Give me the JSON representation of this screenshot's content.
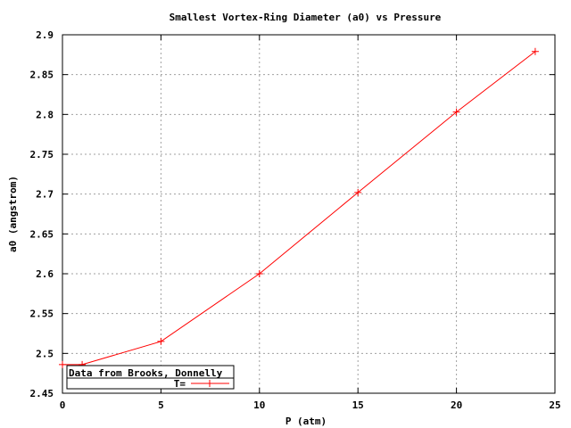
{
  "chart_data": {
    "type": "line",
    "title": "Smallest Vortex-Ring Diameter (a0) vs Pressure",
    "xlabel": "P (atm)",
    "ylabel": "a0 (angstrom)",
    "xlim": [
      0,
      25
    ],
    "ylim": [
      2.45,
      2.9
    ],
    "x_ticks": [
      0,
      5,
      10,
      15,
      20,
      25
    ],
    "y_ticks": [
      2.45,
      2.5,
      2.55,
      2.6,
      2.65,
      2.7,
      2.75,
      2.8,
      2.85,
      2.9
    ],
    "x_tick_labels": [
      "0",
      "5",
      "10",
      "15",
      "20",
      "25"
    ],
    "y_tick_labels": [
      "2.45",
      "2.5",
      "2.55",
      "2.6",
      "2.65",
      "2.7",
      "2.75",
      "2.8",
      "2.85",
      "2.9"
    ],
    "grid": true,
    "legend_position": "bottom-left",
    "legend_title": "Data from Brooks, Donnelly",
    "series": [
      {
        "name": "T=",
        "color": "#ff0000",
        "marker": "plus",
        "x": [
          0,
          1,
          5,
          10,
          15,
          20,
          24
        ],
        "y": [
          2.486,
          2.486,
          2.515,
          2.6,
          2.702,
          2.803,
          2.879
        ]
      }
    ]
  }
}
